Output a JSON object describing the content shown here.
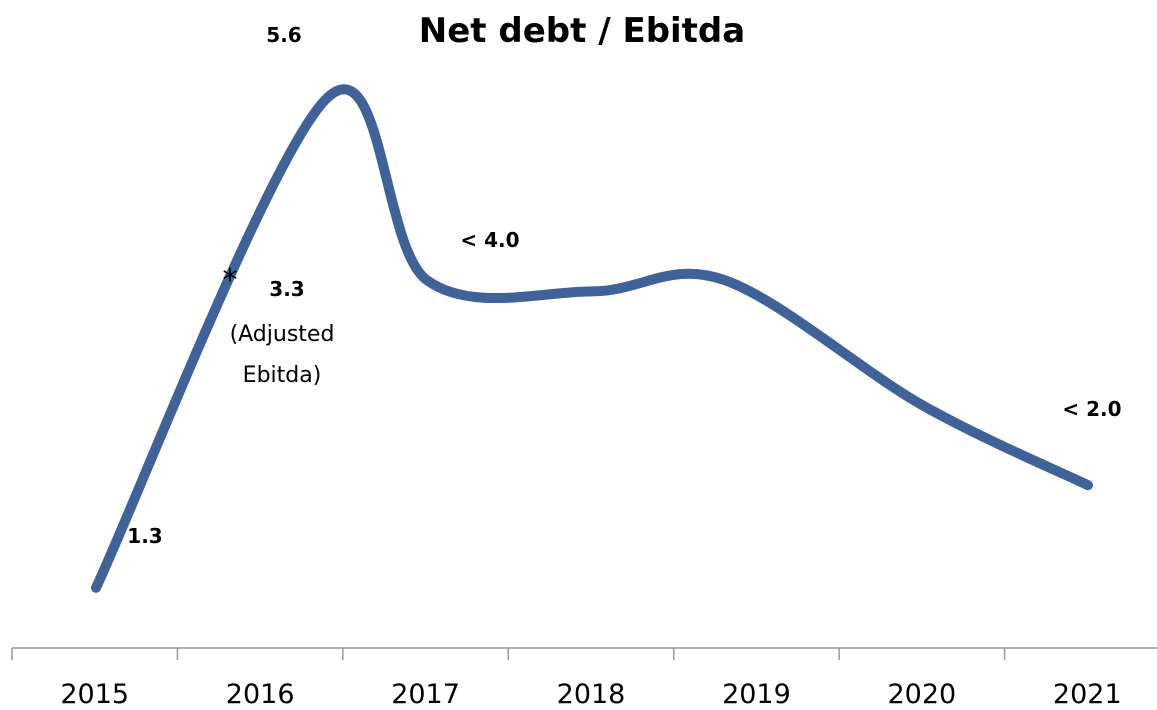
{
  "chart_data": {
    "type": "line",
    "title": "Net debt / Ebitda",
    "xlabel": "",
    "ylabel": "",
    "categories": [
      "2015",
      "2016",
      "2017",
      "2018",
      "2019",
      "2020",
      "2021"
    ],
    "x": [
      2015,
      2016.4,
      2017,
      2018,
      2018.8,
      2020,
      2021
    ],
    "series": [
      {
        "values": [
          1.3,
          5.6,
          4.0,
          3.9,
          4.0,
          2.9,
          2.2
        ],
        "color": "#3F6398"
      }
    ],
    "data_labels": [
      {
        "text": "5.6",
        "x": 2016.4,
        "y": 5.6
      },
      {
        "text": "1.3",
        "x": 2015,
        "y": 1.3
      },
      {
        "text": "< 4.0",
        "x": 2017,
        "y": 4.0
      },
      {
        "text": "< 2.0",
        "x": 2021,
        "y": 2.2
      }
    ],
    "annotation": {
      "marker": "*",
      "value": "3.3",
      "line1": "(Adjusted",
      "line2": "Ebitda)"
    },
    "ylim": [
      0,
      6
    ],
    "grid": false,
    "legend": "none"
  }
}
